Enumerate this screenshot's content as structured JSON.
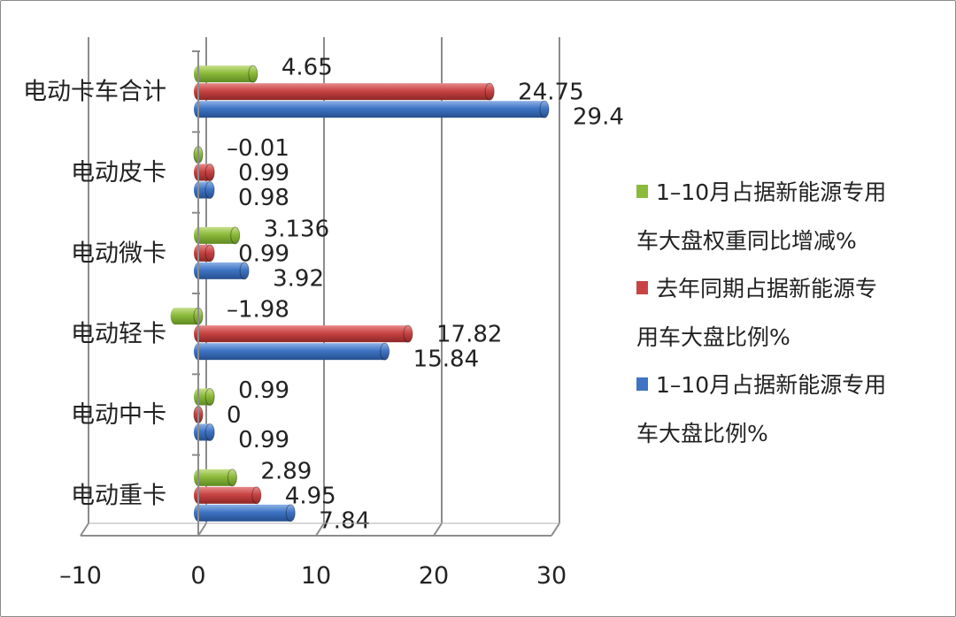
{
  "chart_data": {
    "type": "bar",
    "orientation": "horizontal",
    "categories": [
      "电动卡车合计",
      "电动皮卡",
      "电动微卡",
      "电动轻卡",
      "电动中卡",
      "电动重卡"
    ],
    "series": [
      {
        "name": "1–10月占据新能源专用车大盘权重同比增减%",
        "legend_lines": [
          "1–10月占据新能源专用",
          "车大盘权重同比增减%"
        ],
        "color": "#8cba3a",
        "values": [
          4.65,
          -0.01,
          3.136,
          -1.98,
          0.99,
          2.89
        ],
        "labels": [
          "4.65",
          "–0.01",
          "3.136",
          "–1.98",
          "0.99",
          "2.89"
        ]
      },
      {
        "name": "去年同期占据新能源专用车大盘比例%",
        "legend_lines": [
          "去年同期占据新能源专",
          "用车大盘比例%"
        ],
        "color": "#c84444",
        "values": [
          24.75,
          0.99,
          0.99,
          17.82,
          0,
          4.95
        ],
        "labels": [
          "24.75",
          "0.99",
          "0.99",
          "17.82",
          "0",
          "4.95"
        ]
      },
      {
        "name": "1–10月占据新能源专用车大盘比例%",
        "legend_lines": [
          "1–10月占据新能源专用",
          "车大盘比例%"
        ],
        "color": "#3f74c4",
        "values": [
          29.4,
          0.98,
          3.92,
          15.84,
          0.99,
          7.84
        ],
        "labels": [
          "29.4",
          "0.98",
          "3.92",
          "15.84",
          "0.99",
          "7.84"
        ]
      }
    ],
    "x_ticks": [
      "–10",
      "0",
      "10",
      "20",
      "30"
    ],
    "xlim": [
      -10,
      30
    ],
    "grid": true,
    "legend_position": "right",
    "title": "",
    "xlabel": "",
    "ylabel": ""
  }
}
